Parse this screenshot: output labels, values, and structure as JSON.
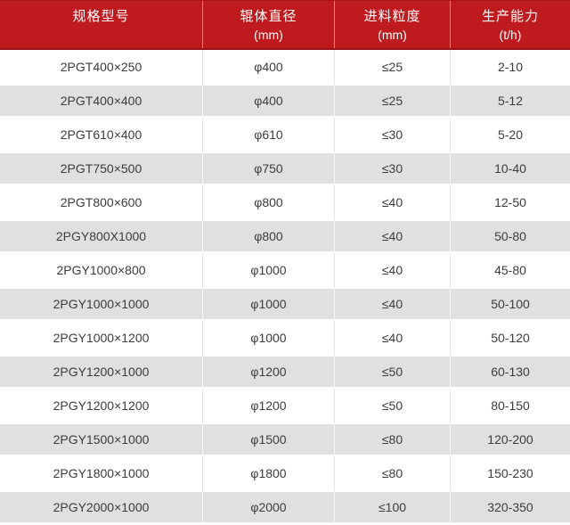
{
  "chart_data": {
    "type": "table",
    "header": [
      {
        "title": "规格型号",
        "unit": ""
      },
      {
        "title": "辊体直径",
        "unit": "(mm)"
      },
      {
        "title": "进料粒度",
        "unit": "(mm)"
      },
      {
        "title": "生产能力",
        "unit": "(t/h)"
      }
    ],
    "rows": [
      [
        "2PGT400×250",
        "φ400",
        "≤25",
        "2-10"
      ],
      [
        "2PGT400×400",
        "φ400",
        "≤25",
        "5-12"
      ],
      [
        "2PGT610×400",
        "φ610",
        "≤30",
        "5-20"
      ],
      [
        "2PGT750×500",
        "φ750",
        "≤30",
        "10-40"
      ],
      [
        "2PGT800×600",
        "φ800",
        "≤40",
        "12-50"
      ],
      [
        "2PGY800X1000",
        "φ800",
        "≤40",
        "50-80"
      ],
      [
        "2PGY1000×800",
        "φ1000",
        "≤40",
        "45-80"
      ],
      [
        "2PGY1000×1000",
        "φ1000",
        "≤40",
        "50-100"
      ],
      [
        "2PGY1000×1200",
        "φ1000",
        "≤40",
        "50-120"
      ],
      [
        "2PGY1200×1000",
        "φ1200",
        "≤50",
        "60-130"
      ],
      [
        "2PGY1200×1200",
        "φ1200",
        "≤50",
        "80-150"
      ],
      [
        "2PGY1500×1000",
        "φ1500",
        "≤80",
        "120-200"
      ],
      [
        "2PGY1800×1000",
        "φ1800",
        "≤80",
        "150-230"
      ],
      [
        "2PGY2000×1000",
        "φ2000",
        "≤100",
        "320-350"
      ]
    ]
  },
  "style": {
    "header_bg": "#BF1A1E",
    "header_border_bottom": "#951419",
    "header_text": "#FFFFFF",
    "stripe_row_bg": "#E0E0E0",
    "white_row_bg": "#FFFFFF",
    "cell_text": "#3C3C3C",
    "divider_on_white": "#E4E4E4",
    "divider_on_stripe": "#F7F7F7"
  }
}
